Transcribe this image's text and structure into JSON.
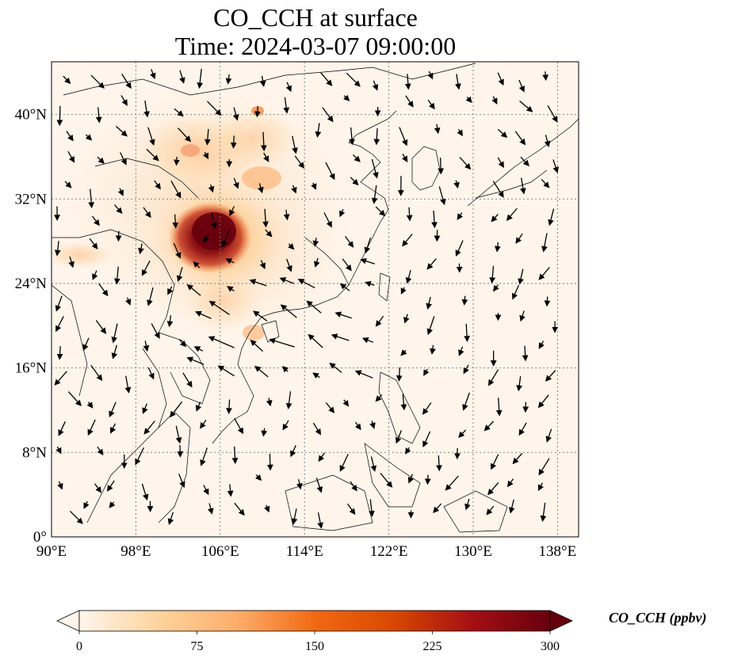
{
  "title": {
    "line1": "CO_CCH at surface",
    "line2": "Time: 2024-03-07 09:00:00"
  },
  "map": {
    "lon_range": [
      90,
      140
    ],
    "lat_range": [
      0,
      45
    ],
    "lon_ticks": [
      90,
      98,
      106,
      114,
      122,
      130,
      138
    ],
    "lat_ticks": [
      0,
      8,
      16,
      24,
      32,
      40
    ],
    "lon_tick_labels": [
      "90°E",
      "98°E",
      "106°E",
      "114°E",
      "122°E",
      "130°E",
      "138°E"
    ],
    "lat_tick_labels": [
      "0°",
      "8°N",
      "16°N",
      "24°N",
      "32°N",
      "40°N"
    ],
    "gridlines": true,
    "hotspot_center": {
      "lon": 104.5,
      "lat": 29.0,
      "peak_ppbv": 300
    }
  },
  "colorbar": {
    "label": "CO_CCH (ppbv)",
    "min": 0,
    "max": 300,
    "ticks": [
      "0",
      "75",
      "150",
      "225",
      "300"
    ],
    "colors": [
      "#fff5eb",
      "#fdd49e",
      "#fdae6b",
      "#f16913",
      "#d94801",
      "#a50f15",
      "#67000d"
    ]
  }
}
